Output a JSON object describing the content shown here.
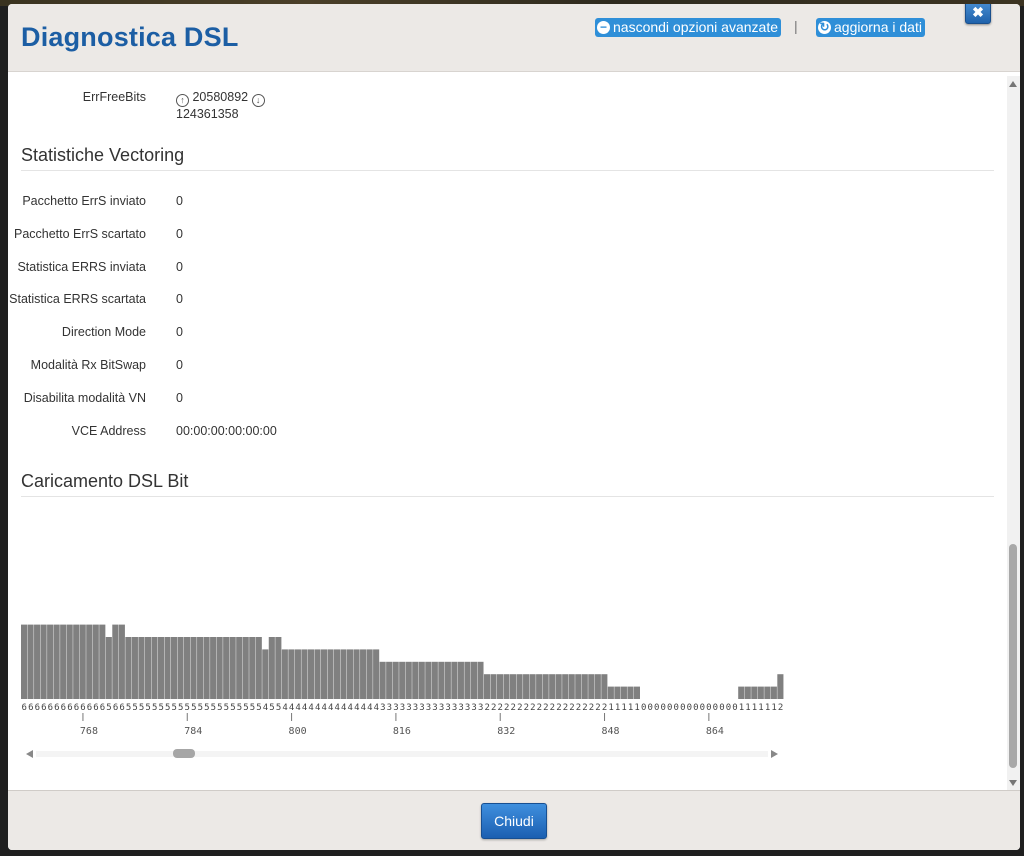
{
  "dialog": {
    "title": "Diagnostica DSL",
    "hide_advanced_label": "nascondi opzioni avanzate",
    "separator": "|",
    "refresh_label": "aggiorna i dati",
    "close_icon_glyph": "✖",
    "footer_button_label": "Chiudi"
  },
  "errfreebits": {
    "label": "ErrFreeBits",
    "up_value": "20580892",
    "down_value": "124361358"
  },
  "vectoring": {
    "title": "Statistiche Vectoring",
    "rows": [
      {
        "label": "Pacchetto ErrS inviato",
        "value": "0"
      },
      {
        "label": "Pacchetto ErrS scartato",
        "value": "0"
      },
      {
        "label": "Statistica ERRS inviata",
        "value": "0"
      },
      {
        "label": "Statistica ERRS scartata",
        "value": "0"
      },
      {
        "label": "Direction Mode",
        "value": "0"
      },
      {
        "label": "Modalità Rx BitSwap",
        "value": "0"
      },
      {
        "label": "Disabilita modalità VN",
        "value": "0"
      },
      {
        "label": "VCE Address",
        "value": "00:00:00:00:00:00"
      }
    ]
  },
  "bitloading": {
    "title": "Caricamento DSL Bit"
  },
  "chart_data": {
    "type": "bar",
    "x_start": 759,
    "x_end": 874,
    "x_ticks": [
      768,
      784,
      800,
      816,
      832,
      848,
      864
    ],
    "values": [
      6,
      6,
      6,
      6,
      6,
      6,
      6,
      6,
      6,
      6,
      6,
      6,
      6,
      5,
      6,
      6,
      5,
      5,
      5,
      5,
      5,
      5,
      5,
      5,
      5,
      5,
      5,
      5,
      5,
      5,
      5,
      5,
      5,
      5,
      5,
      5,
      5,
      4,
      5,
      5,
      4,
      4,
      4,
      4,
      4,
      4,
      4,
      4,
      4,
      4,
      4,
      4,
      4,
      4,
      4,
      3,
      3,
      3,
      3,
      3,
      3,
      3,
      3,
      3,
      3,
      3,
      3,
      3,
      3,
      3,
      3,
      2,
      2,
      2,
      2,
      2,
      2,
      2,
      2,
      2,
      2,
      2,
      2,
      2,
      2,
      2,
      2,
      2,
      2,
      2,
      1,
      1,
      1,
      1,
      1,
      0,
      0,
      0,
      0,
      0,
      0,
      0,
      0,
      0,
      0,
      0,
      0,
      0,
      0,
      0,
      1,
      1,
      1,
      1,
      1,
      1,
      2
    ],
    "bar_color": "#808080",
    "value_labels": true,
    "grid": false,
    "legend": "none"
  }
}
